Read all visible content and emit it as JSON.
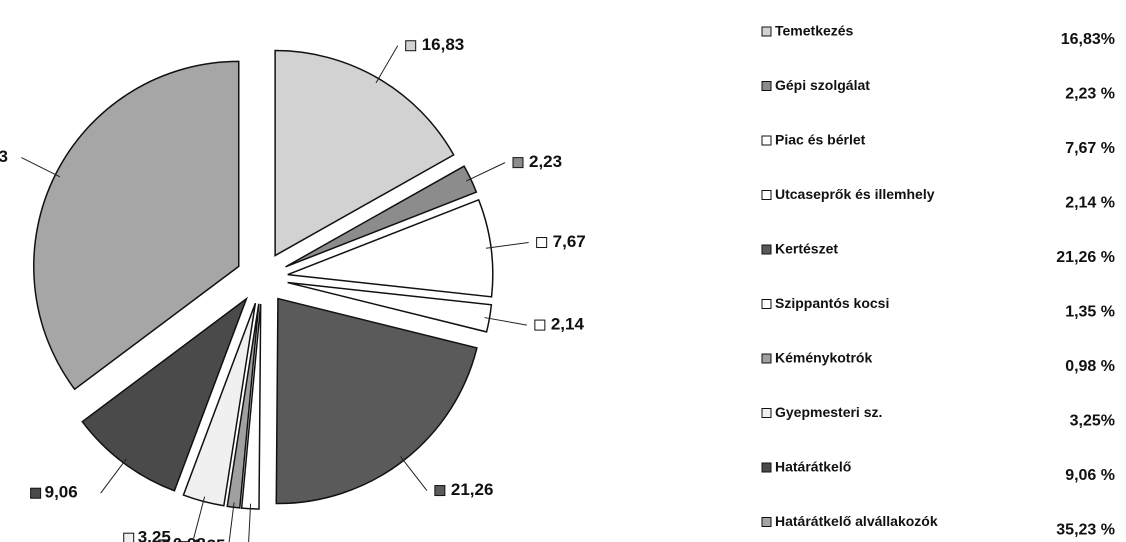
{
  "chart_data": {
    "type": "pie",
    "categories": [
      "Temetkezés",
      "Gépi szolgálat",
      "Piac és bérlet",
      "Utcaseprők és illemhely",
      "Kertészet",
      "Szippantós kocsi",
      "Kéménykotrók",
      "Gyepmesteri sz.",
      "Határátkelő",
      "Határátkelő alvállakozók"
    ],
    "values": [
      16.83,
      2.23,
      7.67,
      2.14,
      21.26,
      1.35,
      0.98,
      3.25,
      9.06,
      35.23
    ],
    "value_labels": [
      "16,83",
      "2,23",
      "7,67",
      "2,14",
      "21,26",
      "1,35",
      "0,98",
      "3,25",
      "9,06",
      "35,23"
    ],
    "legend_value_labels": [
      "16,83%",
      "2,23 %",
      "7,67 %",
      "2,14 %",
      "21,26 %",
      "1,35 %",
      "0,98 %",
      "3,25%",
      "9,06 %",
      "35,23 %"
    ],
    "colors": [
      "#d2d2d2",
      "#8c8c8c",
      "#ffffff",
      "#ffffff",
      "#5a5a5a",
      "#ffffff",
      "#a0a0a0",
      "#f0f0f0",
      "#4a4a4a",
      "#a6a6a6"
    ]
  }
}
